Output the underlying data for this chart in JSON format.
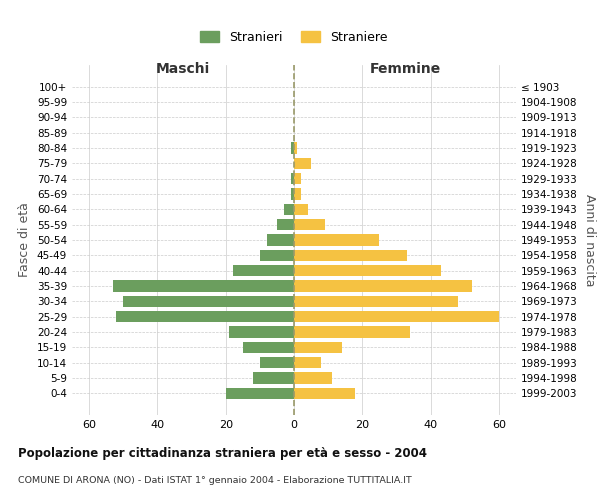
{
  "age_groups": [
    "100+",
    "95-99",
    "90-94",
    "85-89",
    "80-84",
    "75-79",
    "70-74",
    "65-69",
    "60-64",
    "55-59",
    "50-54",
    "45-49",
    "40-44",
    "35-39",
    "30-34",
    "25-29",
    "20-24",
    "15-19",
    "10-14",
    "5-9",
    "0-4"
  ],
  "birth_years": [
    "≤ 1903",
    "1904-1908",
    "1909-1913",
    "1914-1918",
    "1919-1923",
    "1924-1928",
    "1929-1933",
    "1934-1938",
    "1939-1943",
    "1944-1948",
    "1949-1953",
    "1954-1958",
    "1959-1963",
    "1964-1968",
    "1969-1973",
    "1974-1978",
    "1979-1983",
    "1984-1988",
    "1989-1993",
    "1994-1998",
    "1999-2003"
  ],
  "males": [
    0,
    0,
    0,
    0,
    1,
    0,
    1,
    1,
    3,
    5,
    8,
    10,
    18,
    53,
    50,
    52,
    19,
    15,
    10,
    12,
    20
  ],
  "females": [
    0,
    0,
    0,
    0,
    1,
    5,
    2,
    2,
    4,
    9,
    25,
    33,
    43,
    52,
    48,
    60,
    34,
    14,
    8,
    11,
    18
  ],
  "male_color": "#6b9e5e",
  "female_color": "#f5c242",
  "dashed_line_color": "#9a9a6a",
  "grid_color": "#cccccc",
  "bg_color": "#ffffff",
  "xlim": 65,
  "title": "Popolazione per cittadinanza straniera per età e sesso - 2004",
  "subtitle": "COMUNE DI ARONA (NO) - Dati ISTAT 1° gennaio 2004 - Elaborazione TUTTITALIA.IT",
  "legend_maschi": "Stranieri",
  "legend_femmine": "Straniere",
  "xlabel_left": "Maschi",
  "xlabel_right": "Femmine",
  "ylabel_left": "Fasce di età",
  "ylabel_right": "Anni di nascita"
}
